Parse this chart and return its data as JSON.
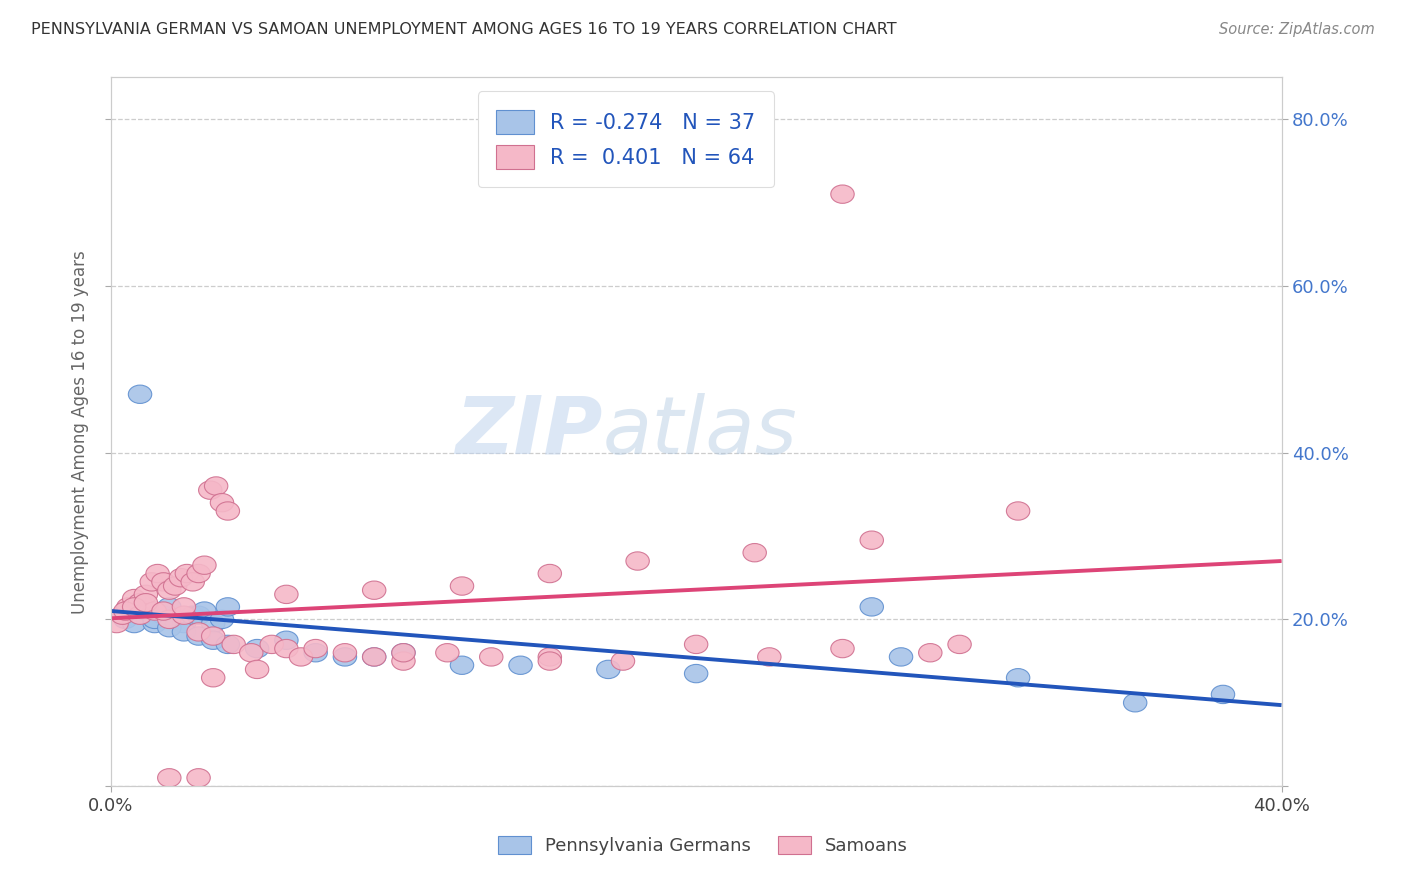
{
  "title": "PENNSYLVANIA GERMAN VS SAMOAN UNEMPLOYMENT AMONG AGES 16 TO 19 YEARS CORRELATION CHART",
  "source_text": "Source: ZipAtlas.com",
  "ylabel_label": "Unemployment Among Ages 16 to 19 years",
  "xmin": 0.0,
  "xmax": 0.4,
  "ymin": 0.0,
  "ymax": 0.85,
  "legend_blue_r": "-0.274",
  "legend_blue_n": "37",
  "legend_pink_r": "0.401",
  "legend_pink_n": "64",
  "blue_color": "#a8c4e8",
  "pink_color": "#f5b8c8",
  "blue_edge_color": "#6090d0",
  "pink_edge_color": "#d07090",
  "blue_line_color": "#2255bb",
  "pink_line_color": "#dd4477",
  "watermark_zip": "ZIP",
  "watermark_atlas": "atlas",
  "blue_scatter_x": [
    0.005,
    0.008,
    0.01,
    0.012,
    0.015,
    0.018,
    0.02,
    0.022,
    0.025,
    0.028,
    0.03,
    0.032,
    0.035,
    0.038,
    0.04,
    0.01,
    0.015,
    0.02,
    0.025,
    0.03,
    0.035,
    0.04,
    0.05,
    0.06,
    0.07,
    0.08,
    0.09,
    0.1,
    0.12,
    0.14,
    0.17,
    0.2,
    0.26,
    0.31,
    0.35,
    0.38,
    0.27
  ],
  "blue_scatter_y": [
    0.2,
    0.195,
    0.22,
    0.21,
    0.195,
    0.205,
    0.215,
    0.2,
    0.195,
    0.205,
    0.205,
    0.21,
    0.195,
    0.2,
    0.215,
    0.47,
    0.2,
    0.19,
    0.185,
    0.18,
    0.175,
    0.17,
    0.165,
    0.175,
    0.16,
    0.155,
    0.155,
    0.16,
    0.145,
    0.145,
    0.14,
    0.135,
    0.215,
    0.13,
    0.1,
    0.11,
    0.155
  ],
  "pink_scatter_x": [
    0.002,
    0.004,
    0.006,
    0.008,
    0.01,
    0.012,
    0.014,
    0.016,
    0.018,
    0.02,
    0.022,
    0.024,
    0.026,
    0.028,
    0.03,
    0.032,
    0.034,
    0.036,
    0.038,
    0.04,
    0.005,
    0.01,
    0.015,
    0.02,
    0.025,
    0.03,
    0.008,
    0.012,
    0.018,
    0.025,
    0.035,
    0.042,
    0.048,
    0.055,
    0.06,
    0.065,
    0.07,
    0.08,
    0.09,
    0.1,
    0.115,
    0.13,
    0.15,
    0.175,
    0.2,
    0.225,
    0.25,
    0.28,
    0.06,
    0.09,
    0.12,
    0.15,
    0.18,
    0.22,
    0.26,
    0.31,
    0.035,
    0.05,
    0.1,
    0.15,
    0.02,
    0.03,
    0.25,
    0.29
  ],
  "pink_scatter_y": [
    0.195,
    0.205,
    0.215,
    0.225,
    0.22,
    0.23,
    0.245,
    0.255,
    0.245,
    0.235,
    0.24,
    0.25,
    0.255,
    0.245,
    0.255,
    0.265,
    0.355,
    0.36,
    0.34,
    0.33,
    0.21,
    0.205,
    0.21,
    0.2,
    0.205,
    0.185,
    0.215,
    0.22,
    0.21,
    0.215,
    0.18,
    0.17,
    0.16,
    0.17,
    0.165,
    0.155,
    0.165,
    0.16,
    0.155,
    0.15,
    0.16,
    0.155,
    0.155,
    0.15,
    0.17,
    0.155,
    0.165,
    0.16,
    0.23,
    0.235,
    0.24,
    0.255,
    0.27,
    0.28,
    0.295,
    0.33,
    0.13,
    0.14,
    0.16,
    0.15,
    0.01,
    0.01,
    0.71,
    0.17
  ]
}
